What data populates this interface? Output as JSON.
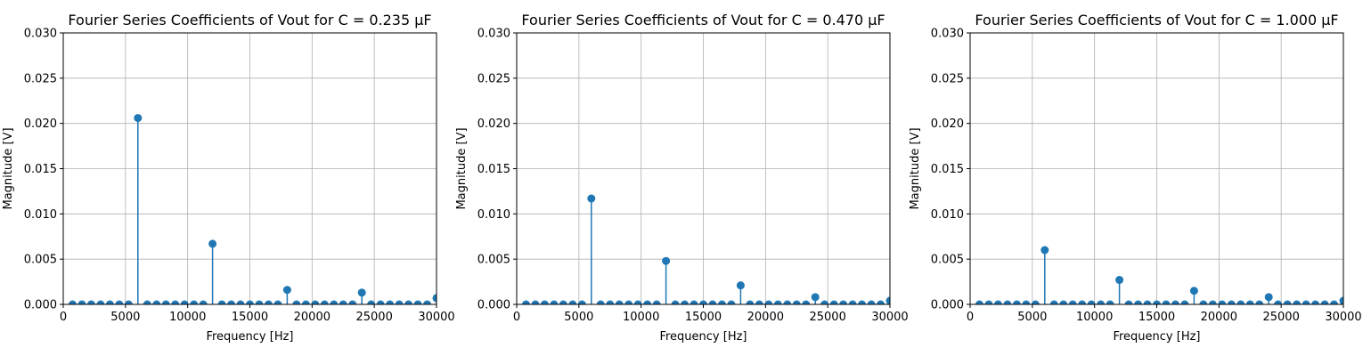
{
  "chart_data": [
    {
      "type": "stem",
      "title": "Fourier Series Coefficients of Vout for C = 0.235 μF",
      "xlabel": "Frequency [Hz]",
      "ylabel": "Magnitude [V]",
      "xlim": [
        0,
        30000
      ],
      "ylim": [
        0,
        0.03
      ],
      "xticks": [
        "0",
        "5000",
        "10000",
        "15000",
        "20000",
        "25000",
        "30000"
      ],
      "yticks": [
        "0.000",
        "0.005",
        "0.010",
        "0.015",
        "0.020",
        "0.025",
        "0.030"
      ],
      "grid": true,
      "color": "#1f77b4",
      "x": [
        750,
        1500,
        2250,
        3000,
        3750,
        4500,
        5250,
        6000,
        6750,
        7500,
        8250,
        9000,
        9750,
        10500,
        11250,
        12000,
        12750,
        13500,
        14250,
        15000,
        15750,
        16500,
        17250,
        18000,
        18750,
        19500,
        20250,
        21000,
        21750,
        22500,
        23250,
        24000,
        24750,
        25500,
        26250,
        27000,
        27750,
        28500,
        29250,
        30000
      ],
      "y": [
        0,
        0,
        0,
        0,
        0,
        0,
        0,
        0.0206,
        0,
        0,
        0,
        0,
        0,
        0,
        0,
        0.0067,
        0,
        0,
        0,
        0,
        0,
        0,
        0,
        0.0016,
        0,
        0,
        0,
        0,
        0,
        0,
        0,
        0.0013,
        0,
        0,
        0,
        0,
        0,
        0,
        0,
        0.0007
      ]
    },
    {
      "type": "stem",
      "title": "Fourier Series Coefficients of Vout for C = 0.470 μF",
      "xlabel": "Frequency [Hz]",
      "ylabel": "Magnitude [V]",
      "xlim": [
        0,
        30000
      ],
      "ylim": [
        0,
        0.03
      ],
      "xticks": [
        "0",
        "5000",
        "10000",
        "15000",
        "20000",
        "25000",
        "30000"
      ],
      "yticks": [
        "0.000",
        "0.005",
        "0.010",
        "0.015",
        "0.020",
        "0.025",
        "0.030"
      ],
      "grid": true,
      "color": "#1f77b4",
      "x": [
        750,
        1500,
        2250,
        3000,
        3750,
        4500,
        5250,
        6000,
        6750,
        7500,
        8250,
        9000,
        9750,
        10500,
        11250,
        12000,
        12750,
        13500,
        14250,
        15000,
        15750,
        16500,
        17250,
        18000,
        18750,
        19500,
        20250,
        21000,
        21750,
        22500,
        23250,
        24000,
        24750,
        25500,
        26250,
        27000,
        27750,
        28500,
        29250,
        30000
      ],
      "y": [
        0,
        0,
        0,
        0,
        0,
        0,
        0,
        0.0117,
        0,
        0,
        0,
        0,
        0,
        0,
        0,
        0.0048,
        0,
        0,
        0,
        0,
        0,
        0,
        0,
        0.0021,
        0,
        0,
        0,
        0,
        0,
        0,
        0,
        0.0008,
        0,
        0,
        0,
        0,
        0,
        0,
        0,
        0.0004
      ]
    },
    {
      "type": "stem",
      "title": "Fourier Series Coefficients of Vout for C = 1.000 μF",
      "xlabel": "Frequency [Hz]",
      "ylabel": "Magnitude [V]",
      "xlim": [
        0,
        30000
      ],
      "ylim": [
        0,
        0.03
      ],
      "xticks": [
        "0",
        "5000",
        "10000",
        "15000",
        "20000",
        "25000",
        "30000"
      ],
      "yticks": [
        "0.000",
        "0.005",
        "0.010",
        "0.015",
        "0.020",
        "0.025",
        "0.030"
      ],
      "grid": true,
      "color": "#1f77b4",
      "x": [
        750,
        1500,
        2250,
        3000,
        3750,
        4500,
        5250,
        6000,
        6750,
        7500,
        8250,
        9000,
        9750,
        10500,
        11250,
        12000,
        12750,
        13500,
        14250,
        15000,
        15750,
        16500,
        17250,
        18000,
        18750,
        19500,
        20250,
        21000,
        21750,
        22500,
        23250,
        24000,
        24750,
        25500,
        26250,
        27000,
        27750,
        28500,
        29250,
        30000
      ],
      "y": [
        0,
        0,
        0,
        0,
        0,
        0,
        0,
        0.006,
        0,
        0,
        0,
        0,
        0,
        0,
        0,
        0.0027,
        0,
        0,
        0,
        0,
        0,
        0,
        0,
        0.0015,
        0,
        0,
        0,
        0,
        0,
        0,
        0,
        0.0008,
        0,
        0,
        0,
        0,
        0,
        0,
        0,
        0.0004
      ]
    }
  ]
}
